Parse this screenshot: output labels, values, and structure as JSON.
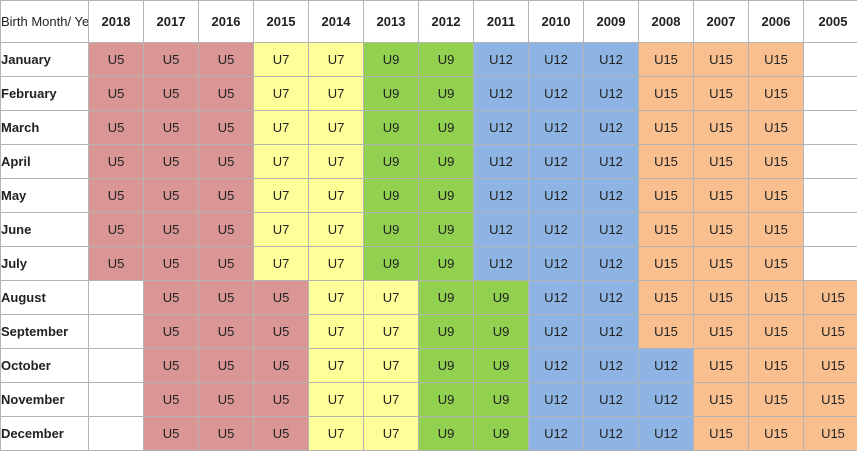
{
  "table": {
    "corner_label": "Birth Month/ Year",
    "years": [
      "2018",
      "2017",
      "2016",
      "2015",
      "2014",
      "2013",
      "2012",
      "2011",
      "2010",
      "2009",
      "2008",
      "2007",
      "2006",
      "2005"
    ],
    "rows": [
      {
        "month": "January",
        "cells": [
          "U5",
          "U5",
          "U5",
          "U7",
          "U7",
          "U9",
          "U9",
          "U12",
          "U12",
          "U12",
          "U15",
          "U15",
          "U15",
          ""
        ]
      },
      {
        "month": "February",
        "cells": [
          "U5",
          "U5",
          "U5",
          "U7",
          "U7",
          "U9",
          "U9",
          "U12",
          "U12",
          "U12",
          "U15",
          "U15",
          "U15",
          ""
        ]
      },
      {
        "month": "March",
        "cells": [
          "U5",
          "U5",
          "U5",
          "U7",
          "U7",
          "U9",
          "U9",
          "U12",
          "U12",
          "U12",
          "U15",
          "U15",
          "U15",
          ""
        ]
      },
      {
        "month": "April",
        "cells": [
          "U5",
          "U5",
          "U5",
          "U7",
          "U7",
          "U9",
          "U9",
          "U12",
          "U12",
          "U12",
          "U15",
          "U15",
          "U15",
          ""
        ]
      },
      {
        "month": "May",
        "cells": [
          "U5",
          "U5",
          "U5",
          "U7",
          "U7",
          "U9",
          "U9",
          "U12",
          "U12",
          "U12",
          "U15",
          "U15",
          "U15",
          ""
        ]
      },
      {
        "month": "June",
        "cells": [
          "U5",
          "U5",
          "U5",
          "U7",
          "U7",
          "U9",
          "U9",
          "U12",
          "U12",
          "U12",
          "U15",
          "U15",
          "U15",
          ""
        ]
      },
      {
        "month": "July",
        "cells": [
          "U5",
          "U5",
          "U5",
          "U7",
          "U7",
          "U9",
          "U9",
          "U12",
          "U12",
          "U12",
          "U15",
          "U15",
          "U15",
          ""
        ]
      },
      {
        "month": "August",
        "cells": [
          "",
          "U5",
          "U5",
          "U5",
          "U7",
          "U7",
          "U9",
          "U9",
          "U12",
          "U12",
          "U15",
          "U15",
          "U15",
          "U15"
        ]
      },
      {
        "month": "September",
        "cells": [
          "",
          "U5",
          "U5",
          "U5",
          "U7",
          "U7",
          "U9",
          "U9",
          "U12",
          "U12",
          "U15",
          "U15",
          "U15",
          "U15"
        ]
      },
      {
        "month": "October",
        "cells": [
          "",
          "U5",
          "U5",
          "U5",
          "U7",
          "U7",
          "U9",
          "U9",
          "U12",
          "U12",
          "U12",
          "U15",
          "U15",
          "U15"
        ]
      },
      {
        "month": "November",
        "cells": [
          "",
          "U5",
          "U5",
          "U5",
          "U7",
          "U7",
          "U9",
          "U9",
          "U12",
          "U12",
          "U12",
          "U15",
          "U15",
          "U15"
        ]
      },
      {
        "month": "December",
        "cells": [
          "",
          "U5",
          "U5",
          "U5",
          "U7",
          "U7",
          "U9",
          "U9",
          "U12",
          "U12",
          "U12",
          "U15",
          "U15",
          "U15"
        ]
      }
    ]
  },
  "colors": {
    "U5": "#da9694",
    "U7": "#ffff99",
    "U9": "#92d050",
    "U12": "#8db4e2",
    "U15": "#fabf8f"
  }
}
